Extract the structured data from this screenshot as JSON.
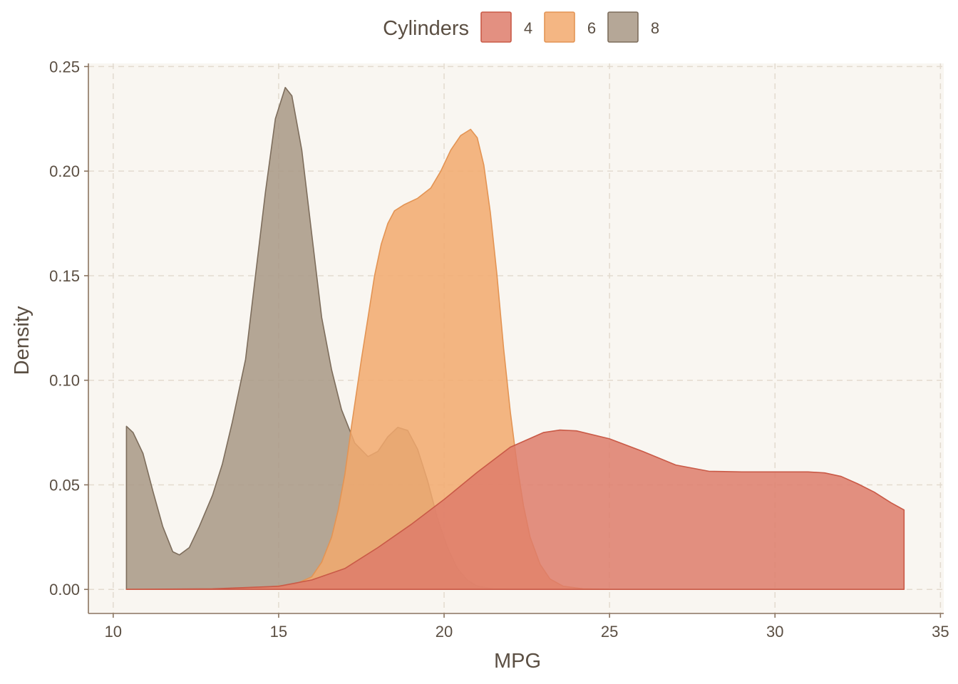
{
  "chart_data": {
    "type": "area",
    "title": "",
    "xlabel": "MPG",
    "ylabel": "Density",
    "xlim": [
      9.25,
      35.1
    ],
    "ylim": [
      -0.0115,
      0.2515
    ],
    "x_ticks": [
      10,
      15,
      20,
      25,
      30,
      35
    ],
    "x_tick_labels": [
      "10",
      "15",
      "20",
      "25",
      "30",
      "35"
    ],
    "y_ticks": [
      0.0,
      0.05,
      0.1,
      0.15,
      0.2,
      0.25
    ],
    "y_tick_labels": [
      "0.00",
      "0.05",
      "0.10",
      "0.15",
      "0.20",
      "0.25"
    ],
    "grid": true,
    "legend": {
      "title": "Cylinders",
      "position": "top",
      "entries": [
        "4",
        "6",
        "8"
      ]
    },
    "colors": {
      "panel_bg": "#f9f6f1",
      "grid": "#e3dbcf",
      "axis": "#8a7460",
      "text": "#5b4f43"
    },
    "series": [
      {
        "name": "8",
        "fill": "#a89885",
        "stroke": "#7d6d5c",
        "points": [
          [
            10.4,
            0.078
          ],
          [
            10.6,
            0.075
          ],
          [
            10.9,
            0.065
          ],
          [
            11.2,
            0.047
          ],
          [
            11.5,
            0.03
          ],
          [
            11.8,
            0.018
          ],
          [
            12.0,
            0.0165
          ],
          [
            12.3,
            0.02
          ],
          [
            12.6,
            0.03
          ],
          [
            13.0,
            0.045
          ],
          [
            13.3,
            0.06
          ],
          [
            13.6,
            0.08
          ],
          [
            14.0,
            0.11
          ],
          [
            14.3,
            0.15
          ],
          [
            14.6,
            0.19
          ],
          [
            14.9,
            0.225
          ],
          [
            15.2,
            0.24
          ],
          [
            15.4,
            0.236
          ],
          [
            15.7,
            0.21
          ],
          [
            16.0,
            0.17
          ],
          [
            16.3,
            0.13
          ],
          [
            16.6,
            0.105
          ],
          [
            16.9,
            0.086
          ],
          [
            17.3,
            0.07
          ],
          [
            17.7,
            0.0635
          ],
          [
            18.0,
            0.066
          ],
          [
            18.3,
            0.073
          ],
          [
            18.6,
            0.0775
          ],
          [
            18.9,
            0.076
          ],
          [
            19.2,
            0.067
          ],
          [
            19.5,
            0.052
          ],
          [
            19.8,
            0.034
          ],
          [
            20.1,
            0.02
          ],
          [
            20.4,
            0.01
          ],
          [
            20.7,
            0.0045
          ],
          [
            21.0,
            0.0015
          ],
          [
            21.5,
            0.0002
          ],
          [
            22.0,
            0.0
          ]
        ]
      },
      {
        "name": "6",
        "fill": "#f2a96d",
        "stroke": "#e39454",
        "points": [
          [
            10.4,
            0.0
          ],
          [
            13.0,
            0.0002
          ],
          [
            14.5,
            0.0008
          ],
          [
            15.5,
            0.0025
          ],
          [
            16.0,
            0.006
          ],
          [
            16.3,
            0.013
          ],
          [
            16.6,
            0.025
          ],
          [
            16.8,
            0.038
          ],
          [
            17.0,
            0.055
          ],
          [
            17.2,
            0.078
          ],
          [
            17.5,
            0.11
          ],
          [
            17.7,
            0.13
          ],
          [
            17.9,
            0.15
          ],
          [
            18.1,
            0.165
          ],
          [
            18.3,
            0.175
          ],
          [
            18.5,
            0.181
          ],
          [
            18.8,
            0.184
          ],
          [
            19.2,
            0.187
          ],
          [
            19.6,
            0.192
          ],
          [
            19.9,
            0.2
          ],
          [
            20.2,
            0.21
          ],
          [
            20.5,
            0.217
          ],
          [
            20.8,
            0.22
          ],
          [
            21.0,
            0.216
          ],
          [
            21.2,
            0.203
          ],
          [
            21.4,
            0.18
          ],
          [
            21.6,
            0.15
          ],
          [
            21.8,
            0.115
          ],
          [
            22.0,
            0.085
          ],
          [
            22.2,
            0.06
          ],
          [
            22.4,
            0.04
          ],
          [
            22.6,
            0.025
          ],
          [
            22.9,
            0.012
          ],
          [
            23.2,
            0.005
          ],
          [
            23.6,
            0.0015
          ],
          [
            24.2,
            0.0003
          ],
          [
            25.0,
            0.0
          ]
        ]
      },
      {
        "name": "4",
        "fill": "#de7d6b",
        "stroke": "#c95a47",
        "points": [
          [
            10.4,
            0.0
          ],
          [
            13.0,
            0.0003
          ],
          [
            15.0,
            0.0015
          ],
          [
            16.0,
            0.0045
          ],
          [
            17.0,
            0.01
          ],
          [
            18.0,
            0.02
          ],
          [
            19.0,
            0.031
          ],
          [
            20.0,
            0.043
          ],
          [
            21.0,
            0.056
          ],
          [
            22.0,
            0.068
          ],
          [
            23.0,
            0.075
          ],
          [
            23.5,
            0.0762
          ],
          [
            24.0,
            0.0758
          ],
          [
            25.0,
            0.072
          ],
          [
            26.0,
            0.066
          ],
          [
            27.0,
            0.0595
          ],
          [
            28.0,
            0.0565
          ],
          [
            29.0,
            0.0562
          ],
          [
            30.0,
            0.0562
          ],
          [
            31.0,
            0.0562
          ],
          [
            31.5,
            0.0557
          ],
          [
            32.0,
            0.054
          ],
          [
            32.5,
            0.0505
          ],
          [
            33.0,
            0.0465
          ],
          [
            33.5,
            0.0415
          ],
          [
            33.9,
            0.038
          ]
        ]
      }
    ]
  }
}
